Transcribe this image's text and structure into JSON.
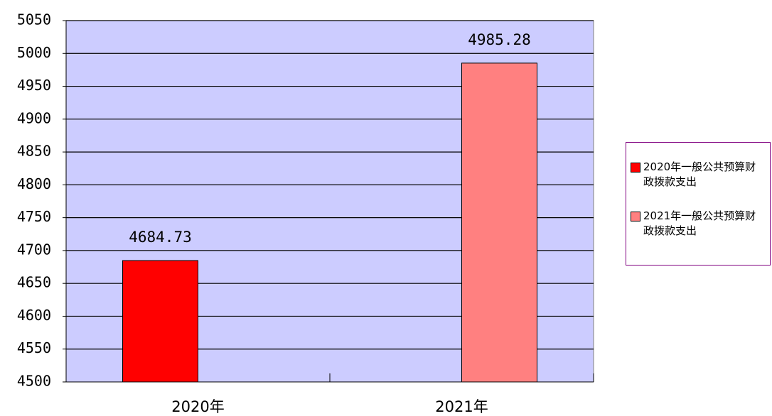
{
  "chart_data": {
    "type": "bar",
    "categories": [
      "2020年",
      "2021年"
    ],
    "series": [
      {
        "name": "2020年一般公共预算财政拨款支出",
        "color": "#ff0000",
        "values": [
          4684.73,
          null
        ]
      },
      {
        "name": "2021年一般公共预算财政拨款支出",
        "color": "#ff8080",
        "values": [
          null,
          4985.28
        ]
      }
    ],
    "ylim": [
      4500,
      5050
    ],
    "yticks": [
      4500,
      4550,
      4600,
      4650,
      4700,
      4750,
      4800,
      4850,
      4900,
      4950,
      5000,
      5050
    ],
    "grid": true,
    "plot_background": "#ccccff",
    "legend": "right"
  }
}
